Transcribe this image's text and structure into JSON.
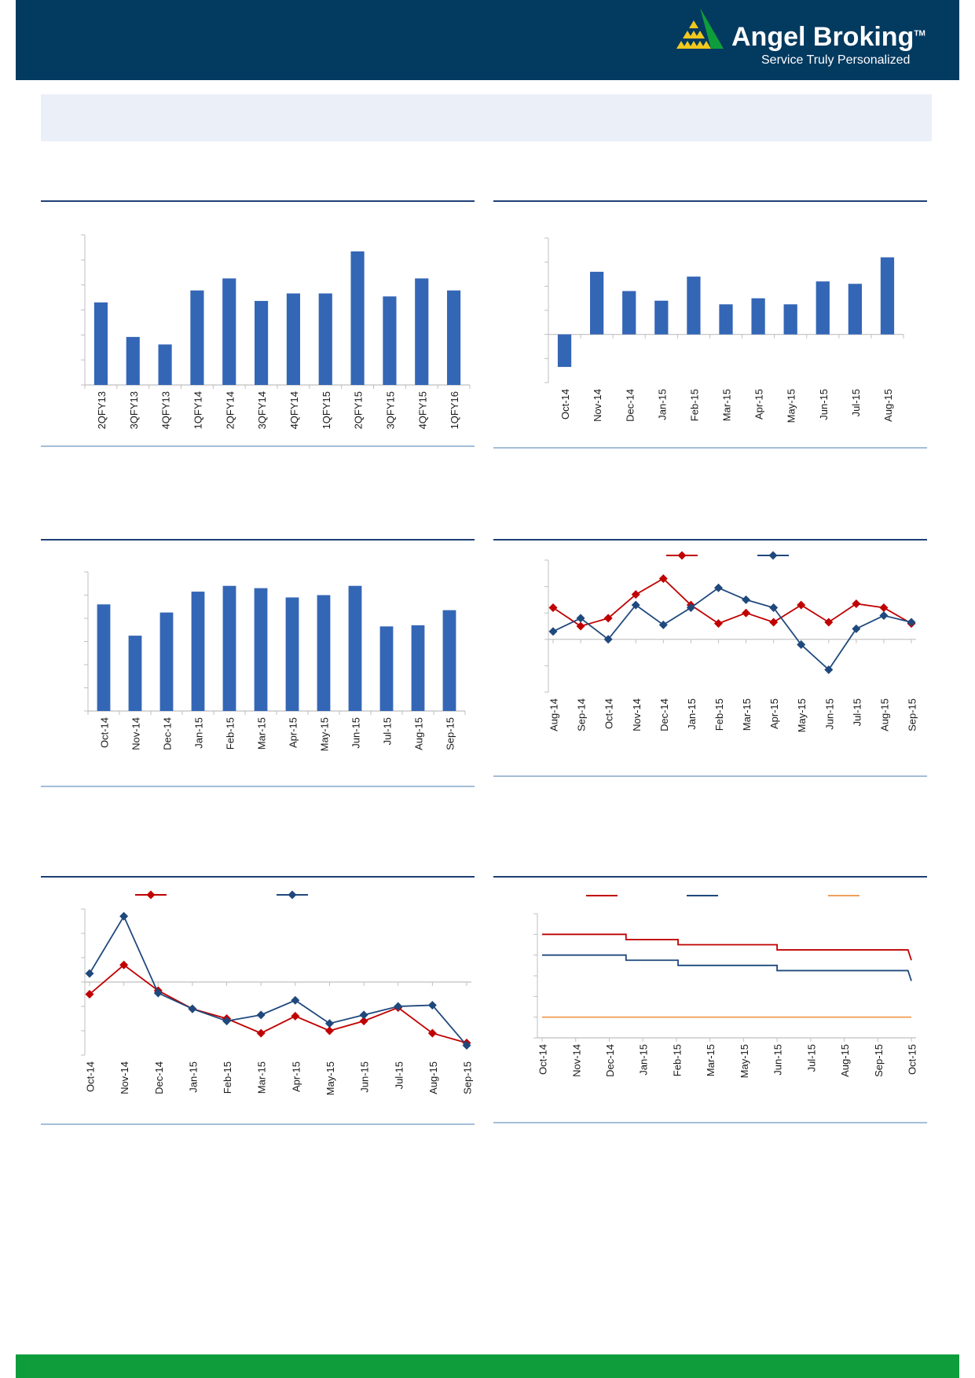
{
  "header": {
    "brand_name": "Angel Broking",
    "brand_tm": "TM",
    "tagline": "Service Truly Personalized",
    "bar_color": "#033A60",
    "logo_colors": [
      "#0F9D3C",
      "#F2C81C"
    ]
  },
  "footer": {
    "bar_color": "#0F9D3C"
  },
  "colors": {
    "bar": "#3466B6",
    "red": "#C00000",
    "blue": "#1F497D",
    "orange": "#F0A15C",
    "axis": "#BFBFBF",
    "panel_rule": "#1F3F75"
  },
  "chart_data": [
    {
      "id": "chart1",
      "type": "bar",
      "categories": [
        "2QFY13",
        "3QFY13",
        "4QFY13",
        "1QFY14",
        "2QFY14",
        "3QFY14",
        "4QFY14",
        "1QFY15",
        "2QFY15",
        "3QFY15",
        "4QFY15",
        "1QFY16"
      ],
      "values": [
        5.5,
        3.2,
        2.7,
        6.3,
        7.1,
        5.6,
        6.1,
        6.1,
        8.9,
        5.9,
        7.1,
        6.3
      ],
      "ylim": [
        0,
        10
      ],
      "yticks": [
        0,
        1.67,
        3.33,
        5,
        6.67,
        8.33,
        10
      ]
    },
    {
      "id": "chart2",
      "type": "bar",
      "categories": [
        "Oct-14",
        "Nov-14",
        "Dec-14",
        "Jan-15",
        "Feb-15",
        "Mar-15",
        "Apr-15",
        "May-15",
        "Jun-15",
        "Jul-15",
        "Aug-15"
      ],
      "values": [
        -2.7,
        5.2,
        3.6,
        2.8,
        4.8,
        2.5,
        3.0,
        2.5,
        4.4,
        4.2,
        6.4
      ],
      "ylim": [
        -4,
        8
      ],
      "yticks": [
        -4,
        -2,
        0,
        2,
        4,
        6,
        8
      ]
    },
    {
      "id": "chart3",
      "type": "bar",
      "categories": [
        "Oct-14",
        "Nov-14",
        "Dec-14",
        "Jan-15",
        "Feb-15",
        "Mar-15",
        "Apr-15",
        "May-15",
        "Jun-15",
        "Jul-15",
        "Aug-15",
        "Sep-15"
      ],
      "values": [
        4.6,
        3.25,
        4.25,
        5.15,
        5.4,
        5.3,
        4.9,
        5.0,
        5.4,
        3.65,
        3.7,
        4.35
      ],
      "ylim": [
        0,
        6
      ],
      "yticks": [
        0,
        1,
        2,
        3,
        4,
        5,
        6
      ]
    },
    {
      "id": "chart4",
      "type": "line",
      "categories": [
        "Aug-14",
        "Sep-14",
        "Oct-14",
        "Nov-14",
        "Dec-14",
        "Jan-15",
        "Feb-15",
        "Mar-15",
        "Apr-15",
        "May-15",
        "Jun-15",
        "Jul-15",
        "Aug-15",
        "Sep-15"
      ],
      "series": [
        {
          "name": "",
          "color": "#C00000",
          "values": [
            1.2,
            0.5,
            0.8,
            1.7,
            2.3,
            1.3,
            0.6,
            1.0,
            0.65,
            1.3,
            0.65,
            1.35,
            1.2,
            0.6
          ]
        },
        {
          "name": "",
          "color": "#1F497D",
          "values": [
            0.3,
            0.8,
            0.0,
            1.3,
            0.55,
            1.2,
            1.95,
            1.5,
            1.2,
            -0.2,
            -1.15,
            0.4,
            0.9,
            0.65
          ]
        }
      ],
      "ylim": [
        -2,
        3
      ],
      "yticks": [
        -2,
        -1,
        0,
        1,
        2,
        3
      ],
      "legend": "top"
    },
    {
      "id": "chart5",
      "type": "line",
      "categories": [
        "Oct-14",
        "Nov-14",
        "Dec-14",
        "Jan-15",
        "Feb-15",
        "Mar-15",
        "Apr-15",
        "May-15",
        "Jun-15",
        "Jul-15",
        "Aug-15",
        "Sep-15"
      ],
      "series": [
        {
          "name": "",
          "color": "#C00000",
          "values": [
            -0.5,
            0.7,
            -0.35,
            -1.1,
            -1.5,
            -2.1,
            -1.4,
            -2.0,
            -1.6,
            -1.05,
            -2.1,
            -2.5
          ]
        },
        {
          "name": "",
          "color": "#1F497D",
          "values": [
            0.35,
            2.7,
            -0.45,
            -1.1,
            -1.6,
            -1.35,
            -0.75,
            -1.7,
            -1.35,
            -1.0,
            -0.95,
            -2.6
          ]
        }
      ],
      "ylim": [
        -3,
        3
      ],
      "yticks": [
        -3,
        -2,
        -1,
        0,
        1,
        2,
        3
      ],
      "legend": "top"
    },
    {
      "id": "chart6",
      "type": "line",
      "categories": [
        "Oct-14",
        "Nov-14",
        "Dec-14",
        "Jan-15",
        "Feb-15",
        "Mar-15",
        "May-15",
        "Jun-15",
        "Jul-15",
        "Aug-15",
        "Sep-15",
        "Oct-15"
      ],
      "series": [
        {
          "name": "",
          "color": "#C00000",
          "points": [
            [
              0,
              8.0
            ],
            [
              2.5,
              8.0
            ],
            [
              2.5,
              7.75
            ],
            [
              4.05,
              7.75
            ],
            [
              4.05,
              7.5
            ],
            [
              7.0,
              7.5
            ],
            [
              7.0,
              7.25
            ],
            [
              10.9,
              7.25
            ],
            [
              11.0,
              6.75
            ]
          ]
        },
        {
          "name": "",
          "color": "#1F497D",
          "points": [
            [
              0,
              7.0
            ],
            [
              2.5,
              7.0
            ],
            [
              2.5,
              6.75
            ],
            [
              4.05,
              6.75
            ],
            [
              4.05,
              6.5
            ],
            [
              7.0,
              6.5
            ],
            [
              7.0,
              6.25
            ],
            [
              10.9,
              6.25
            ],
            [
              11.0,
              5.75
            ]
          ]
        },
        {
          "name": "",
          "color": "#F0A15C",
          "points": [
            [
              0,
              4.0
            ],
            [
              11.0,
              4.0
            ]
          ]
        }
      ],
      "ylim": [
        3,
        9
      ],
      "yticks": [
        3,
        4,
        5,
        6,
        7,
        8,
        9
      ],
      "legend": "top"
    }
  ]
}
